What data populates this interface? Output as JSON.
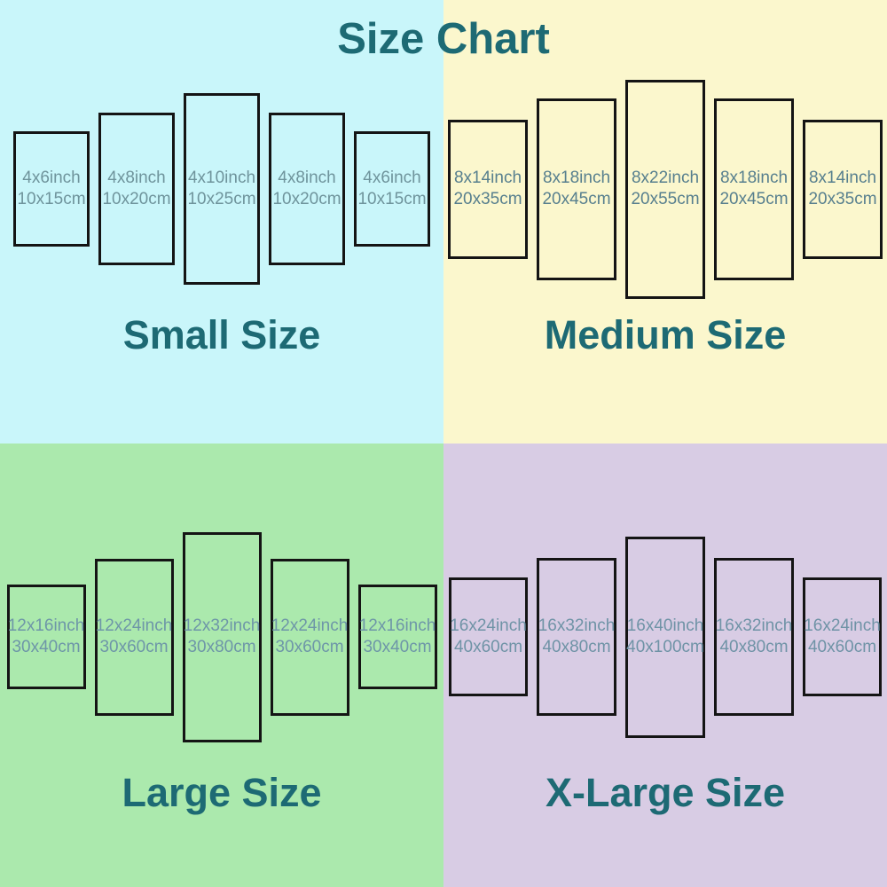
{
  "title": "Size Chart",
  "heading_color": "#1d6a74",
  "border_color": "#141414",
  "quadrants": [
    {
      "name": "small",
      "label": "Small Size",
      "bg": "#c9f6fa",
      "text_color": "#6f949c",
      "panels": [
        {
          "inch": "4x6inch",
          "cm": "10x15cm"
        },
        {
          "inch": "4x8inch",
          "cm": "10x20cm"
        },
        {
          "inch": "4x10inch",
          "cm": "10x25cm"
        },
        {
          "inch": "4x8inch",
          "cm": "10x20cm"
        },
        {
          "inch": "4x6inch",
          "cm": "10x15cm"
        }
      ]
    },
    {
      "name": "medium",
      "label": "Medium Size",
      "bg": "#fbf7cd",
      "text_color": "#577f8e",
      "panels": [
        {
          "inch": "8x14inch",
          "cm": "20x35cm"
        },
        {
          "inch": "8x18inch",
          "cm": "20x45cm"
        },
        {
          "inch": "8x22inch",
          "cm": "20x55cm"
        },
        {
          "inch": "8x18inch",
          "cm": "20x45cm"
        },
        {
          "inch": "8x14inch",
          "cm": "20x35cm"
        }
      ]
    },
    {
      "name": "large",
      "label": "Large Size",
      "bg": "#abe9ad",
      "text_color": "#6e96a8",
      "panels": [
        {
          "inch": "12x16inch",
          "cm": "30x40cm"
        },
        {
          "inch": "12x24inch",
          "cm": "30x60cm"
        },
        {
          "inch": "12x32inch",
          "cm": "30x80cm"
        },
        {
          "inch": "12x24inch",
          "cm": "30x60cm"
        },
        {
          "inch": "12x16inch",
          "cm": "30x40cm"
        }
      ]
    },
    {
      "name": "xlarge",
      "label": "X-Large Size",
      "bg": "#d8cce4",
      "text_color": "#6f93a6",
      "panels": [
        {
          "inch": "16x24inch",
          "cm": "40x60cm"
        },
        {
          "inch": "16x32inch",
          "cm": "40x80cm"
        },
        {
          "inch": "16x40inch",
          "cm": "40x100cm"
        },
        {
          "inch": "16x32inch",
          "cm": "40x80cm"
        },
        {
          "inch": "16x24inch",
          "cm": "40x60cm"
        }
      ]
    }
  ]
}
